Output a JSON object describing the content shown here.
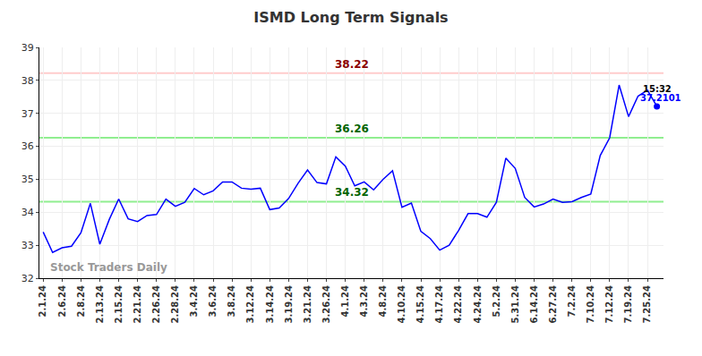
{
  "chart_data": {
    "type": "line",
    "title": "ISMD Long Term Signals",
    "categories": [
      "2.1.24",
      null,
      "2.6.24",
      null,
      "2.8.24",
      null,
      "2.13.24",
      null,
      "2.15.24",
      null,
      "2.21.24",
      null,
      "2.26.24",
      null,
      "2.28.24",
      null,
      "3.4.24",
      null,
      "3.6.24",
      null,
      "3.8.24",
      null,
      "3.12.24",
      null,
      "3.14.24",
      null,
      "3.19.24",
      null,
      "3.21.24",
      null,
      "3.26.24",
      null,
      "4.1.24",
      null,
      "4.3.24",
      null,
      "4.8.24",
      null,
      "4.10.24",
      null,
      "4.15.24",
      null,
      "4.17.24",
      null,
      "4.22.24",
      null,
      "4.24.24",
      null,
      "5.2.24",
      null,
      "5.31.24",
      null,
      "6.14.24",
      null,
      "6.27.24",
      null,
      "7.2.24",
      null,
      "7.10.24",
      null,
      "7.12.24",
      null,
      "7.19.24",
      null,
      "7.25.24",
      null
    ],
    "values": [
      33.4,
      32.78,
      32.92,
      32.97,
      33.38,
      34.27,
      33.03,
      33.78,
      34.4,
      33.8,
      33.72,
      33.9,
      33.93,
      34.4,
      34.18,
      34.3,
      34.72,
      34.53,
      34.65,
      34.92,
      34.92,
      34.73,
      34.7,
      34.73,
      34.08,
      34.13,
      34.42,
      34.88,
      35.28,
      34.9,
      34.86,
      35.68,
      35.4,
      34.8,
      34.92,
      34.68,
      35.0,
      35.26,
      34.15,
      34.28,
      33.42,
      33.2,
      32.85,
      33.0,
      33.45,
      33.96,
      33.96,
      33.85,
      34.3,
      35.64,
      35.33,
      34.45,
      34.16,
      34.25,
      34.4,
      34.3,
      34.32,
      34.45,
      34.55,
      35.72,
      36.26,
      37.86,
      36.9,
      37.52,
      37.7,
      37.2101
    ],
    "color": "#0000ff",
    "ylim": [
      32,
      39
    ],
    "yticks": [
      32,
      33,
      34,
      35,
      36,
      37,
      38,
      39
    ],
    "grid": true,
    "levels": [
      {
        "value": 38.22,
        "color": "#ffcccc",
        "label_color": "#8b0000"
      },
      {
        "value": 36.26,
        "color": "#90ee90",
        "label_color": "#006400"
      },
      {
        "value": 34.32,
        "color": "#90ee90",
        "label_color": "#006400"
      }
    ],
    "time_label": "15:32",
    "watermark": "Stock Traders Daily"
  }
}
